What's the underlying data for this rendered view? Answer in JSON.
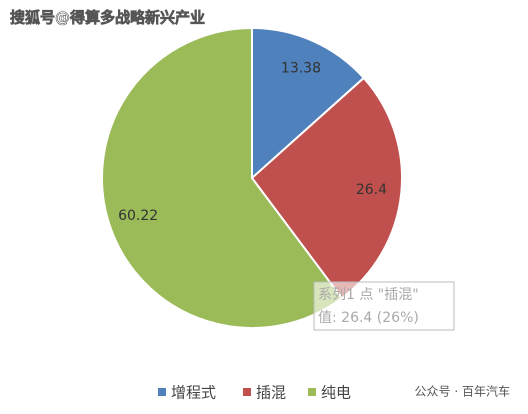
{
  "chart_data": {
    "type": "pie",
    "categories": [
      "增程式",
      "插混",
      "纯电"
    ],
    "values": [
      13.38,
      26.4,
      60.22
    ],
    "colors": [
      "#4f81bd",
      "#c0504d",
      "#9bbb59"
    ],
    "legend": "bottom",
    "tooltip": {
      "title": "系列1 点 \"插混\"",
      "value": "值: 26.4 (26%)"
    }
  },
  "watermark": "搜狐号@得算多战略新兴产业",
  "source": "公众号 · 百年汽车"
}
